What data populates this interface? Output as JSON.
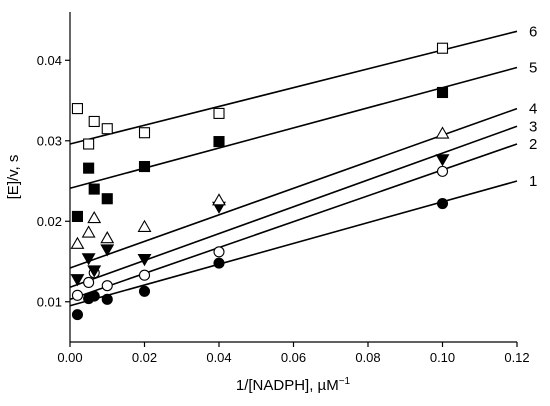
{
  "chart_data": {
    "type": "scatter",
    "xlabel": "1/[NADPH], µM",
    "xlabel_exp": "−1",
    "ylabel": "[E]/v, s",
    "xlim": [
      0,
      0.12
    ],
    "ylim": [
      0.005,
      0.046
    ],
    "x_ticks": [
      0.0,
      0.02,
      0.04,
      0.06,
      0.08,
      0.1,
      0.12
    ],
    "x_tick_labels": [
      "0.00",
      "0.02",
      "0.04",
      "0.06",
      "0.08",
      "0.10",
      "0.12"
    ],
    "y_ticks": [
      0.01,
      0.02,
      0.03,
      0.04
    ],
    "y_tick_labels": [
      "0.01",
      "0.02",
      "0.03",
      "0.04"
    ],
    "grid": false,
    "series": [
      {
        "name": "1",
        "marker": "filled-circle",
        "color": "#000000",
        "points": [
          [
            0.002,
            0.0084
          ],
          [
            0.005,
            0.0104
          ],
          [
            0.0065,
            0.0107
          ],
          [
            0.01,
            0.0103
          ],
          [
            0.02,
            0.0113
          ],
          [
            0.04,
            0.0148
          ],
          [
            0.1,
            0.0222
          ]
        ],
        "line": [
          [
            0.0,
            0.0095
          ],
          [
            0.12,
            0.025
          ]
        ]
      },
      {
        "name": "2",
        "marker": "open-circle",
        "color": "#000000",
        "points": [
          [
            0.002,
            0.0108
          ],
          [
            0.005,
            0.0124
          ],
          [
            0.0065,
            0.0136
          ],
          [
            0.01,
            0.012
          ],
          [
            0.02,
            0.0133
          ],
          [
            0.04,
            0.0162
          ],
          [
            0.1,
            0.0262
          ]
        ],
        "line": [
          [
            0.0,
            0.0103
          ],
          [
            0.12,
            0.0296
          ]
        ]
      },
      {
        "name": "3",
        "marker": "filled-triangle-down",
        "color": "#000000",
        "points": [
          [
            0.002,
            0.0128
          ],
          [
            0.005,
            0.0154
          ],
          [
            0.0065,
            0.0139
          ],
          [
            0.01,
            0.0165
          ],
          [
            0.02,
            0.0153
          ],
          [
            0.04,
            0.0218
          ],
          [
            0.1,
            0.0277
          ]
        ],
        "line": [
          [
            0.0,
            0.0118
          ],
          [
            0.12,
            0.0318
          ]
        ]
      },
      {
        "name": "4",
        "marker": "open-triangle-up",
        "color": "#000000",
        "points": [
          [
            0.002,
            0.0172
          ],
          [
            0.005,
            0.0186
          ],
          [
            0.0065,
            0.0204
          ],
          [
            0.01,
            0.0179
          ],
          [
            0.02,
            0.0193
          ],
          [
            0.04,
            0.0226
          ],
          [
            0.1,
            0.0309
          ]
        ],
        "line": [
          [
            0.0,
            0.0142
          ],
          [
            0.12,
            0.034
          ]
        ]
      },
      {
        "name": "5",
        "marker": "filled-square",
        "color": "#000000",
        "points": [
          [
            0.002,
            0.0206
          ],
          [
            0.005,
            0.0266
          ],
          [
            0.0065,
            0.024
          ],
          [
            0.01,
            0.0228
          ],
          [
            0.02,
            0.0268
          ],
          [
            0.04,
            0.0299
          ],
          [
            0.1,
            0.036
          ]
        ],
        "line": [
          [
            0.0,
            0.0241
          ],
          [
            0.12,
            0.0391
          ]
        ]
      },
      {
        "name": "6",
        "marker": "open-square",
        "color": "#000000",
        "points": [
          [
            0.002,
            0.034
          ],
          [
            0.005,
            0.0296
          ],
          [
            0.0065,
            0.0324
          ],
          [
            0.01,
            0.0315
          ],
          [
            0.02,
            0.031
          ],
          [
            0.04,
            0.0334
          ],
          [
            0.1,
            0.0415
          ]
        ],
        "line": [
          [
            0.0,
            0.0296
          ],
          [
            0.12,
            0.0436
          ]
        ]
      }
    ]
  }
}
